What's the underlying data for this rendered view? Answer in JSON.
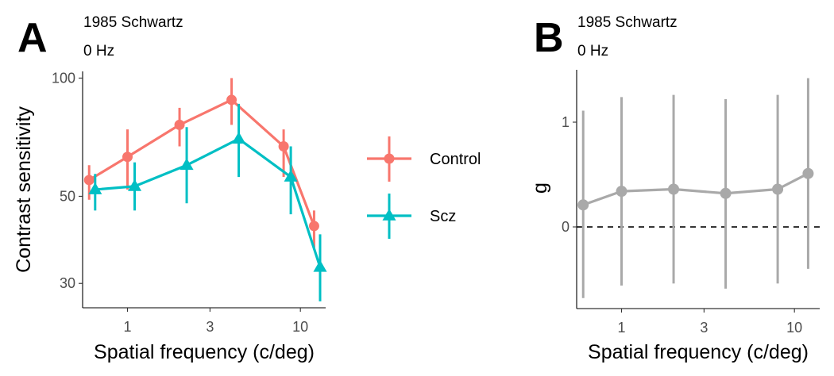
{
  "colors": {
    "control": "#F8766D",
    "scz": "#00BFC4",
    "effect": "#A9A9A9"
  },
  "chart_data": [
    {
      "panel": "A",
      "type": "line",
      "subtitle_line1": "1985 Schwartz",
      "subtitle_line2": "0 Hz",
      "xlabel": "Spatial frequency (c/deg)",
      "ylabel": "Contrast sensitivity",
      "x_scale": "log",
      "y_scale": "log",
      "xlim": [
        0.55,
        14
      ],
      "ylim": [
        26,
        104
      ],
      "x_ticks": [
        1,
        3,
        10
      ],
      "x_tick_labels": [
        "1",
        "3",
        "10"
      ],
      "y_ticks": [
        30,
        50,
        100
      ],
      "y_tick_labels": [
        "30",
        "50",
        "100"
      ],
      "legend_position": "right",
      "series": [
        {
          "name": "Control",
          "marker": "circle",
          "x": [
            0.6,
            1.0,
            2.0,
            4.0,
            8.0,
            12.0
          ],
          "y": [
            55,
            63,
            76,
            88,
            67,
            42
          ],
          "y_low": [
            49,
            52,
            67,
            76,
            56,
            37
          ],
          "y_high": [
            60,
            74,
            84,
            100,
            74,
            46
          ]
        },
        {
          "name": "Scz",
          "marker": "triangle",
          "x": [
            0.65,
            1.1,
            2.2,
            4.4,
            8.8,
            13.0
          ],
          "y": [
            52,
            53,
            60,
            70,
            56,
            33
          ],
          "y_low": [
            46,
            46,
            48,
            56,
            45,
            27
          ],
          "y_high": [
            57,
            61,
            75,
            86,
            67,
            40
          ]
        }
      ]
    },
    {
      "panel": "B",
      "type": "line",
      "subtitle_line1": "1985 Schwartz",
      "subtitle_line2": "0 Hz",
      "xlabel": "Spatial frequency (c/deg)",
      "ylabel": "g",
      "x_scale": "log",
      "xlim": [
        0.55,
        14
      ],
      "ylim": [
        -0.78,
        1.5
      ],
      "x_ticks": [
        1,
        3,
        10
      ],
      "x_tick_labels": [
        "1",
        "3",
        "10"
      ],
      "y_ticks": [
        0,
        1
      ],
      "y_tick_labels": [
        "0",
        "1"
      ],
      "reference_line": 0,
      "series": [
        {
          "name": "",
          "marker": "circle",
          "x": [
            0.6,
            1.0,
            2.0,
            4.0,
            8.0,
            12.0
          ],
          "y": [
            0.21,
            0.34,
            0.36,
            0.32,
            0.36,
            0.51
          ],
          "y_low": [
            -0.68,
            -0.56,
            -0.54,
            -0.59,
            -0.54,
            -0.4
          ],
          "y_high": [
            1.11,
            1.24,
            1.26,
            1.22,
            1.26,
            1.42
          ]
        }
      ]
    }
  ]
}
